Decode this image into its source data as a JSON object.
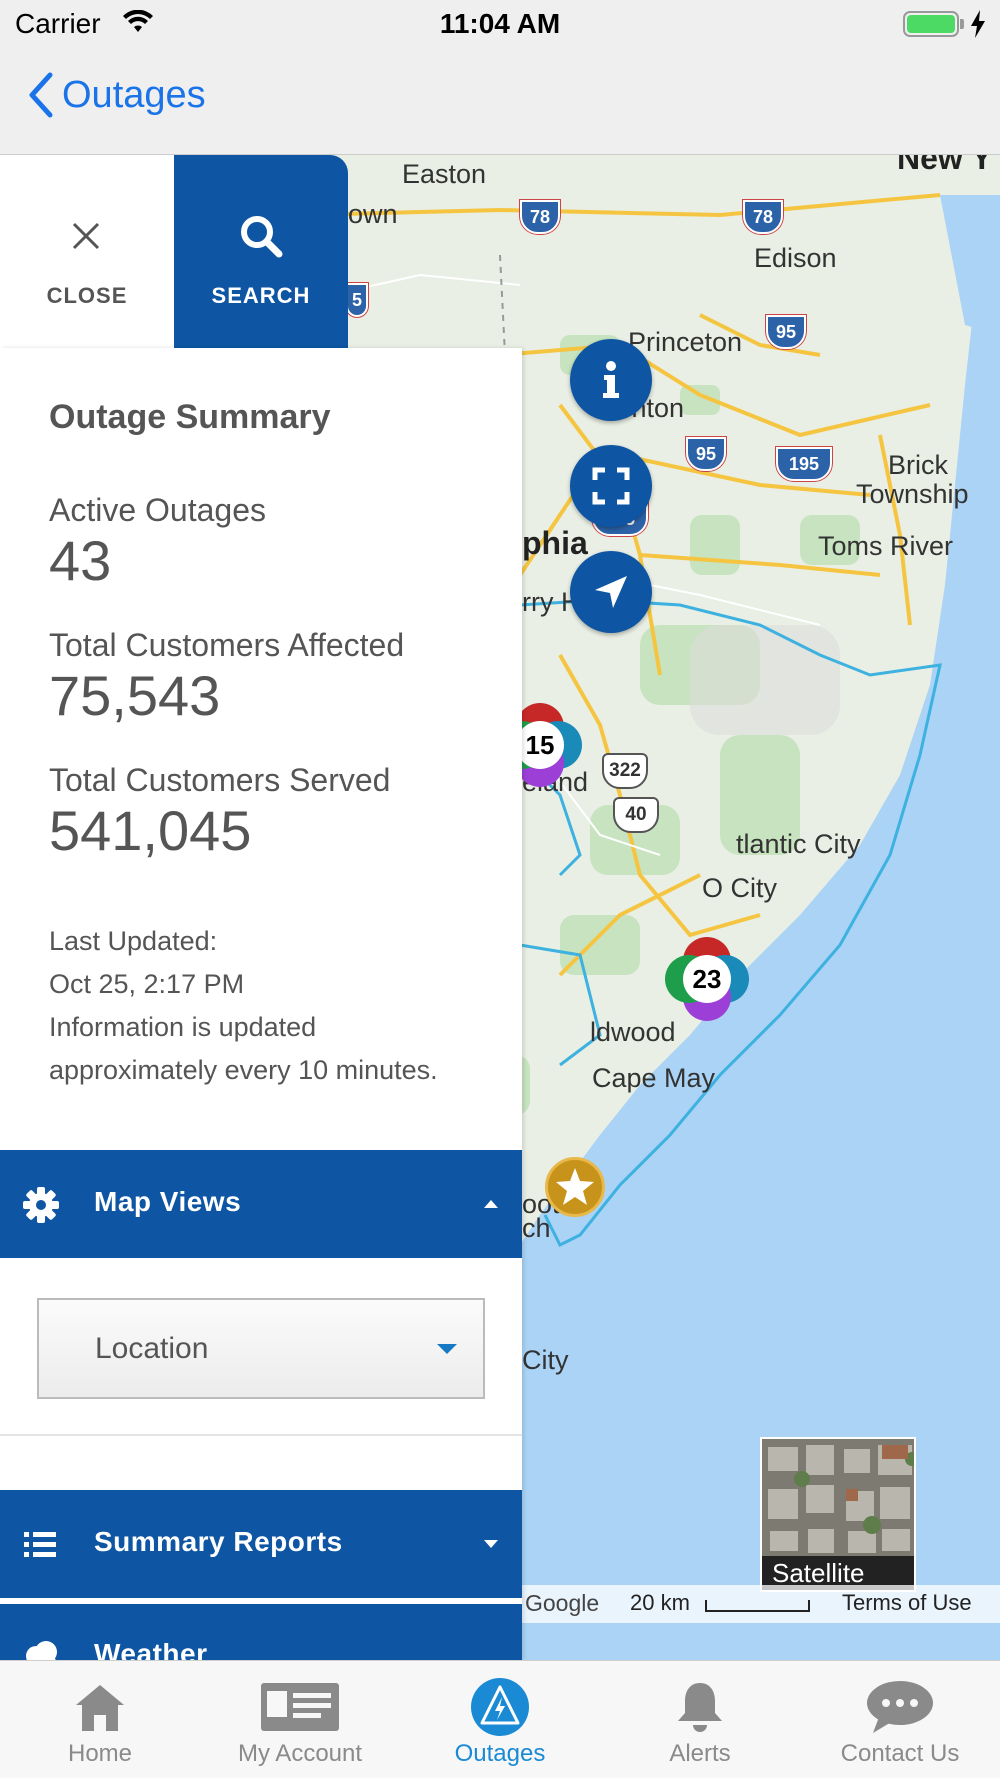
{
  "status_bar": {
    "carrier": "Carrier",
    "time": "11:04 AM"
  },
  "nav": {
    "back_label": "Outages"
  },
  "panel_tabs": {
    "close_label": "CLOSE",
    "search_label": "SEARCH"
  },
  "summary": {
    "title": "Outage Summary",
    "active_outages_label": "Active Outages",
    "active_outages_value": "43",
    "customers_affected_label": "Total Customers Affected",
    "customers_affected_value": "75,543",
    "customers_served_label": "Total Customers Served",
    "customers_served_value": "541,045",
    "last_updated_label": "Last Updated:",
    "last_updated_value": "Oct 25, 2:17 PM",
    "info_line1": "Information is updated",
    "info_line2": "approximately every 10 minutes."
  },
  "sections": {
    "map_views": "Map Views",
    "location_select": "Location",
    "summary_reports": "Summary Reports",
    "weather": "Weather"
  },
  "map": {
    "labels": {
      "new_york": "New Y",
      "easton": "Easton",
      "town": "own",
      "edison": "Edison",
      "princeton": "Princeton",
      "trenton": "Trenton",
      "brick": "Brick",
      "township": "Township",
      "toms_river": "Toms River",
      "philadelphia": "phia",
      "cherry_hill": "rry Hill",
      "vineland": "eland",
      "atlantic_city": "tlantic City",
      "ocean_city": "O    City",
      "wildwood": "ldwood",
      "cape_may": "Cape May",
      "booth": "ooth",
      "bch": "ch",
      "city": "City"
    },
    "shields": [
      "78",
      "78",
      "95",
      "95",
      "195",
      "295",
      "5"
    ],
    "us_routes": [
      "322",
      "40"
    ],
    "clusters": [
      {
        "count": "15",
        "colors": [
          "#c62828",
          "#1a8ab8",
          "#9c3fd6"
        ]
      },
      {
        "count": "23",
        "colors": [
          "#c62828",
          "#1a8ab8",
          "#9c3fd6",
          "#1e9e4a"
        ]
      }
    ],
    "icons": [
      "info-icon",
      "fullscreen-icon",
      "location-arrow-icon",
      "star-icon"
    ],
    "satellite_label": "Satellite",
    "google": "Google",
    "scale": "20 km",
    "terms": "Terms of Use"
  },
  "tab_bar": {
    "items": [
      {
        "label": "Home",
        "icon": "home-icon"
      },
      {
        "label": "My Account",
        "icon": "id-card-icon"
      },
      {
        "label": "Outages",
        "icon": "outage-bolt-icon"
      },
      {
        "label": "Alerts",
        "icon": "bell-icon"
      },
      {
        "label": "Contact Us",
        "icon": "chat-bubble-icon"
      }
    ],
    "active": "Outages"
  },
  "colors": {
    "brand_blue": "#0e55a3",
    "ios_blue": "#1a73e8",
    "active_tab": "#1a8ad4",
    "water": "#aad3f5",
    "land": "#e8f0e0"
  }
}
